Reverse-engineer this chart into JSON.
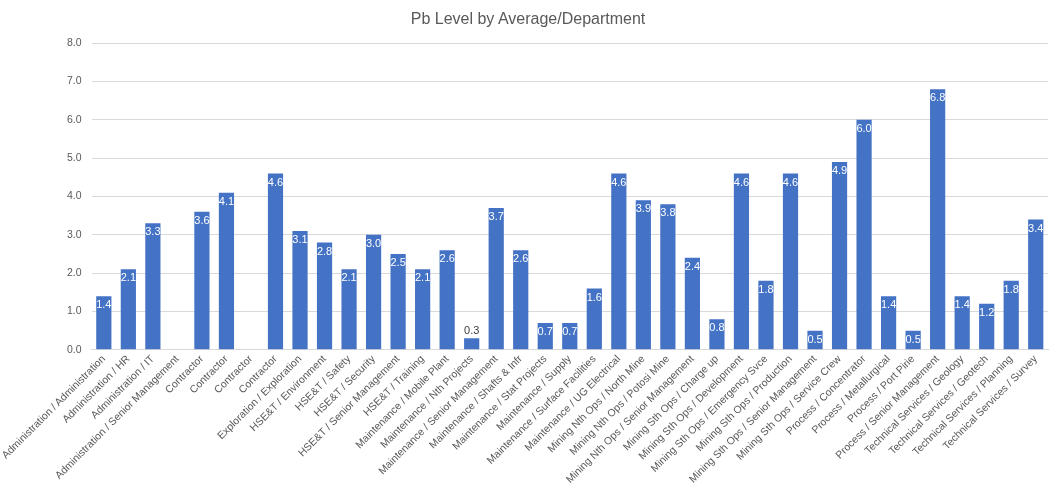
{
  "chart_data": {
    "type": "bar",
    "title": "Pb Level by Average/Department",
    "categories": [
      "Administration / Administration",
      "Administration / HR",
      "Administration / IT",
      "Administration / Senior Management",
      "Contractor",
      "Contractor",
      "Contractor",
      "Contractor",
      "Exploration / Exploration",
      "HSE&T / Environment",
      "HSE&T / Safety",
      "HSE&T / Security",
      "HSE&T / Senior Management",
      "HSE&T / Training",
      "Maintenance / Mobile Plant",
      "Maintenance / Nth Projects",
      "Maintenance / Senior Management",
      "Maintenance / Shafts & Infr",
      "Maintenance / Stat Projects",
      "Maintenance / Supply",
      "Maintenance / Surface Facilities",
      "Maintenance / UG Electrical",
      "Mining Nth Ops / North Mine",
      "Mining Nth Ops / Potosi Mine",
      "Mining Nth Ops / Senior Management",
      "Mining Sth Ops / Charge up",
      "Mining Sth Ops / Development",
      "Mining Sth Ops / Emergency Svce",
      "Mining Sth Ops / Production",
      "Mining Sth Ops / Senior Management",
      "Mining Sth Ops / Service Crew",
      "Process / Concentrator",
      "Process / Metallurgical",
      "Process / Port Pirie",
      "Process / Senior Management",
      "Technical Services / Geology",
      "Technical Services / Geotech",
      "Technical Services / Planning",
      "Technical Services / Survey"
    ],
    "values": [
      1.4,
      2.1,
      3.3,
      null,
      3.6,
      4.1,
      null,
      4.6,
      3.1,
      2.8,
      2.1,
      3.0,
      2.5,
      2.1,
      2.6,
      0.3,
      3.7,
      2.6,
      0.7,
      0.7,
      1.6,
      4.6,
      3.9,
      3.8,
      2.4,
      0.8,
      4.6,
      1.8,
      4.6,
      0.5,
      4.9,
      6.0,
      1.4,
      0.5,
      6.8,
      1.4,
      1.2,
      1.8,
      3.4
    ],
    "color": "#4472c4",
    "ylim": [
      0,
      8
    ],
    "yticks": [
      {
        "value": 0,
        "label": "0.0"
      },
      {
        "value": 1,
        "label": "1.0"
      },
      {
        "value": 2,
        "label": "2.0"
      },
      {
        "value": 3,
        "label": "3.0"
      },
      {
        "value": 4,
        "label": "4.0"
      },
      {
        "value": 5,
        "label": "5.0"
      },
      {
        "value": 6,
        "label": "6.0"
      },
      {
        "value": 7,
        "label": "7.0"
      },
      {
        "value": 8,
        "label": "8.0"
      }
    ],
    "value_labels": [
      "1.4",
      "2.1",
      "3.3",
      null,
      "3.6",
      "4.1",
      null,
      "4.6",
      "3.1",
      "2.8",
      "2.1",
      "3.0",
      "2.5",
      "2.1",
      "2.6",
      "0.3",
      "3.7",
      "2.6",
      "0.7",
      "0.7",
      "1.6",
      "4.6",
      "3.9",
      "3.8",
      "2.4",
      "0.8",
      "4.6",
      "1.8",
      "4.6",
      "0.5",
      "4.9",
      "6.0",
      "1.4",
      "0.5",
      "6.8",
      "1.4",
      "1.2",
      "1.8",
      "3.4"
    ],
    "grid": "y",
    "legend": false
  }
}
